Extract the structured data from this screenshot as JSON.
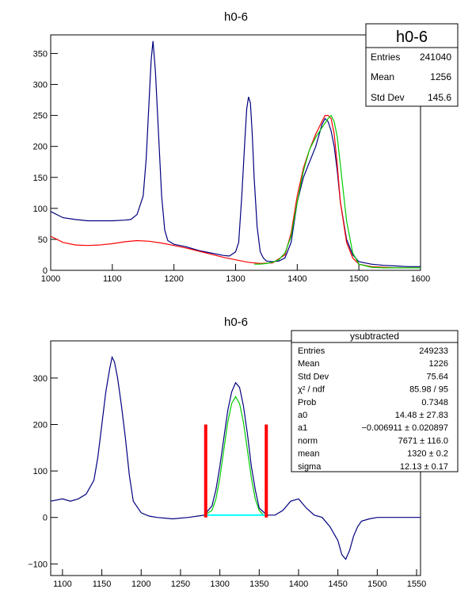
{
  "charts": [
    {
      "title": "h0-6",
      "xlim": [
        1000,
        1600
      ],
      "ylim": [
        0,
        380
      ],
      "xticks": [
        1000,
        1100,
        1200,
        1300,
        1400,
        1500,
        1600
      ],
      "yticks": [
        0,
        50,
        100,
        150,
        200,
        250,
        300,
        350
      ],
      "stats": {
        "name": "h0-6",
        "rows": [
          {
            "label": "Entries",
            "value": "241040"
          },
          {
            "label": "Mean",
            "value": "1256"
          },
          {
            "label": "Std Dev",
            "value": "145.6"
          }
        ]
      }
    },
    {
      "title": "h0-6",
      "xlim": [
        1085,
        1555
      ],
      "ylim": [
        -125,
        380
      ],
      "xticks": [
        1100,
        1150,
        1200,
        1250,
        1300,
        1350,
        1400,
        1450,
        1500,
        1550
      ],
      "yticks": [
        -100,
        0,
        100,
        200,
        300
      ],
      "stats": {
        "name": "ysubtracted",
        "rows": [
          {
            "label": "Entries",
            "value": "249233"
          },
          {
            "label": "Mean",
            "value": "1226"
          },
          {
            "label": "Std Dev",
            "value": "75.64"
          },
          {
            "label": "χ² / ndf",
            "value": "85.98 / 95"
          },
          {
            "label": "Prob",
            "value": "0.7348"
          },
          {
            "label": "a0",
            "value": "14.48  ± 27.83"
          },
          {
            "label": "a1",
            "value": "−0.006911  ± 0.020897"
          },
          {
            "label": "norm",
            "value": "7671  ± 116.0"
          },
          {
            "label": "mean",
            "value": "1320  ± 0.2"
          },
          {
            "label": "sigma",
            "value": "12.13  ± 0.17"
          }
        ]
      }
    }
  ],
  "chart_data": [
    {
      "type": "line",
      "title": "h0-6",
      "xlim": [
        1000,
        1600
      ],
      "ylim": [
        0,
        380
      ],
      "series": [
        {
          "color": "#000080",
          "x": [
            1000,
            1020,
            1040,
            1060,
            1080,
            1100,
            1120,
            1130,
            1140,
            1150,
            1155,
            1160,
            1163,
            1166,
            1170,
            1175,
            1180,
            1185,
            1190,
            1200,
            1210,
            1220,
            1240,
            1260,
            1280,
            1290,
            1300,
            1305,
            1310,
            1315,
            1318,
            1321,
            1324,
            1327,
            1330,
            1335,
            1340,
            1345,
            1350,
            1360,
            1370,
            1380,
            1390,
            1400,
            1410,
            1420,
            1430,
            1440,
            1445,
            1450,
            1455,
            1460,
            1465,
            1470,
            1480,
            1490,
            1500,
            1520,
            1540,
            1560,
            1580,
            1600
          ],
          "y": [
            95,
            85,
            82,
            80,
            80,
            80,
            81,
            82,
            90,
            120,
            180,
            280,
            340,
            370,
            320,
            220,
            120,
            65,
            48,
            42,
            40,
            38,
            32,
            28,
            24,
            23,
            30,
            45,
            120,
            210,
            260,
            280,
            270,
            220,
            150,
            70,
            30,
            20,
            15,
            14,
            15,
            20,
            45,
            110,
            150,
            175,
            200,
            235,
            245,
            240,
            225,
            200,
            160,
            110,
            50,
            25,
            14,
            10,
            8,
            7,
            6,
            6
          ]
        },
        {
          "color": "#ff0000",
          "x": [
            1000,
            1020,
            1040,
            1060,
            1080,
            1100,
            1120,
            1140,
            1160,
            1180,
            1200,
            1220,
            1240,
            1260,
            1280,
            1300,
            1320,
            1340,
            1360,
            1380,
            1390,
            1400,
            1410,
            1420,
            1430,
            1440,
            1445,
            1450,
            1455,
            1460,
            1465,
            1470,
            1480,
            1490,
            1500,
            1520,
            1540,
            1560,
            1580,
            1600
          ],
          "y": [
            55,
            45,
            41,
            40,
            41,
            43,
            46,
            48,
            47,
            44,
            40,
            36,
            31,
            26,
            21,
            17,
            13,
            11,
            12,
            25,
            60,
            120,
            165,
            195,
            220,
            240,
            250,
            250,
            245,
            220,
            170,
            110,
            45,
            20,
            10,
            6,
            5,
            4,
            4,
            4
          ]
        },
        {
          "color": "#00cc00",
          "x": [
            1330,
            1340,
            1350,
            1360,
            1370,
            1380,
            1390,
            1400,
            1410,
            1420,
            1430,
            1440,
            1450,
            1455,
            1460,
            1465,
            1470,
            1480,
            1490,
            1500,
            1520,
            1540,
            1560,
            1580,
            1600
          ],
          "y": [
            10,
            10,
            11,
            13,
            17,
            28,
            55,
            110,
            160,
            195,
            215,
            230,
            245,
            250,
            240,
            215,
            170,
            80,
            28,
            10,
            5,
            4,
            4,
            4,
            4
          ]
        }
      ]
    },
    {
      "type": "line",
      "title": "h0-6",
      "xlim": [
        1085,
        1555
      ],
      "ylim": [
        -125,
        380
      ],
      "series": [
        {
          "color": "#000080",
          "x": [
            1085,
            1100,
            1110,
            1120,
            1130,
            1140,
            1145,
            1150,
            1155,
            1160,
            1163,
            1166,
            1170,
            1175,
            1180,
            1185,
            1190,
            1200,
            1210,
            1220,
            1240,
            1260,
            1280,
            1290,
            1295,
            1300,
            1305,
            1310,
            1315,
            1320,
            1325,
            1330,
            1335,
            1340,
            1345,
            1350,
            1360,
            1370,
            1380,
            1390,
            1400,
            1410,
            1420,
            1430,
            1440,
            1450,
            1455,
            1460,
            1465,
            1470,
            1475,
            1480,
            1490,
            1500,
            1520,
            1540,
            1555
          ],
          "y": [
            35,
            40,
            35,
            40,
            50,
            80,
            130,
            200,
            270,
            320,
            345,
            335,
            300,
            240,
            170,
            90,
            35,
            10,
            3,
            0,
            -3,
            0,
            5,
            25,
            60,
            110,
            170,
            230,
            270,
            290,
            280,
            240,
            180,
            110,
            60,
            20,
            5,
            5,
            15,
            35,
            40,
            20,
            5,
            0,
            -20,
            -50,
            -80,
            -90,
            -70,
            -40,
            -20,
            -8,
            -3,
            0,
            0,
            0,
            0
          ]
        },
        {
          "color": "#00cc00",
          "x": [
            1280,
            1290,
            1295,
            1300,
            1305,
            1310,
            1315,
            1320,
            1325,
            1330,
            1335,
            1340,
            1345,
            1350,
            1355,
            1360
          ],
          "y": [
            5,
            15,
            40,
            85,
            145,
            205,
            245,
            260,
            245,
            205,
            145,
            85,
            40,
            15,
            6,
            5
          ]
        },
        {
          "color": "#00ffff",
          "x": [
            1282,
            1358
          ],
          "y": [
            5,
            5
          ]
        }
      ],
      "markers": [
        {
          "color": "#ff0000",
          "x": 1282,
          "y": [
            0,
            200
          ]
        },
        {
          "color": "#ff0000",
          "x": 1359,
          "y": [
            0,
            200
          ]
        }
      ]
    }
  ]
}
